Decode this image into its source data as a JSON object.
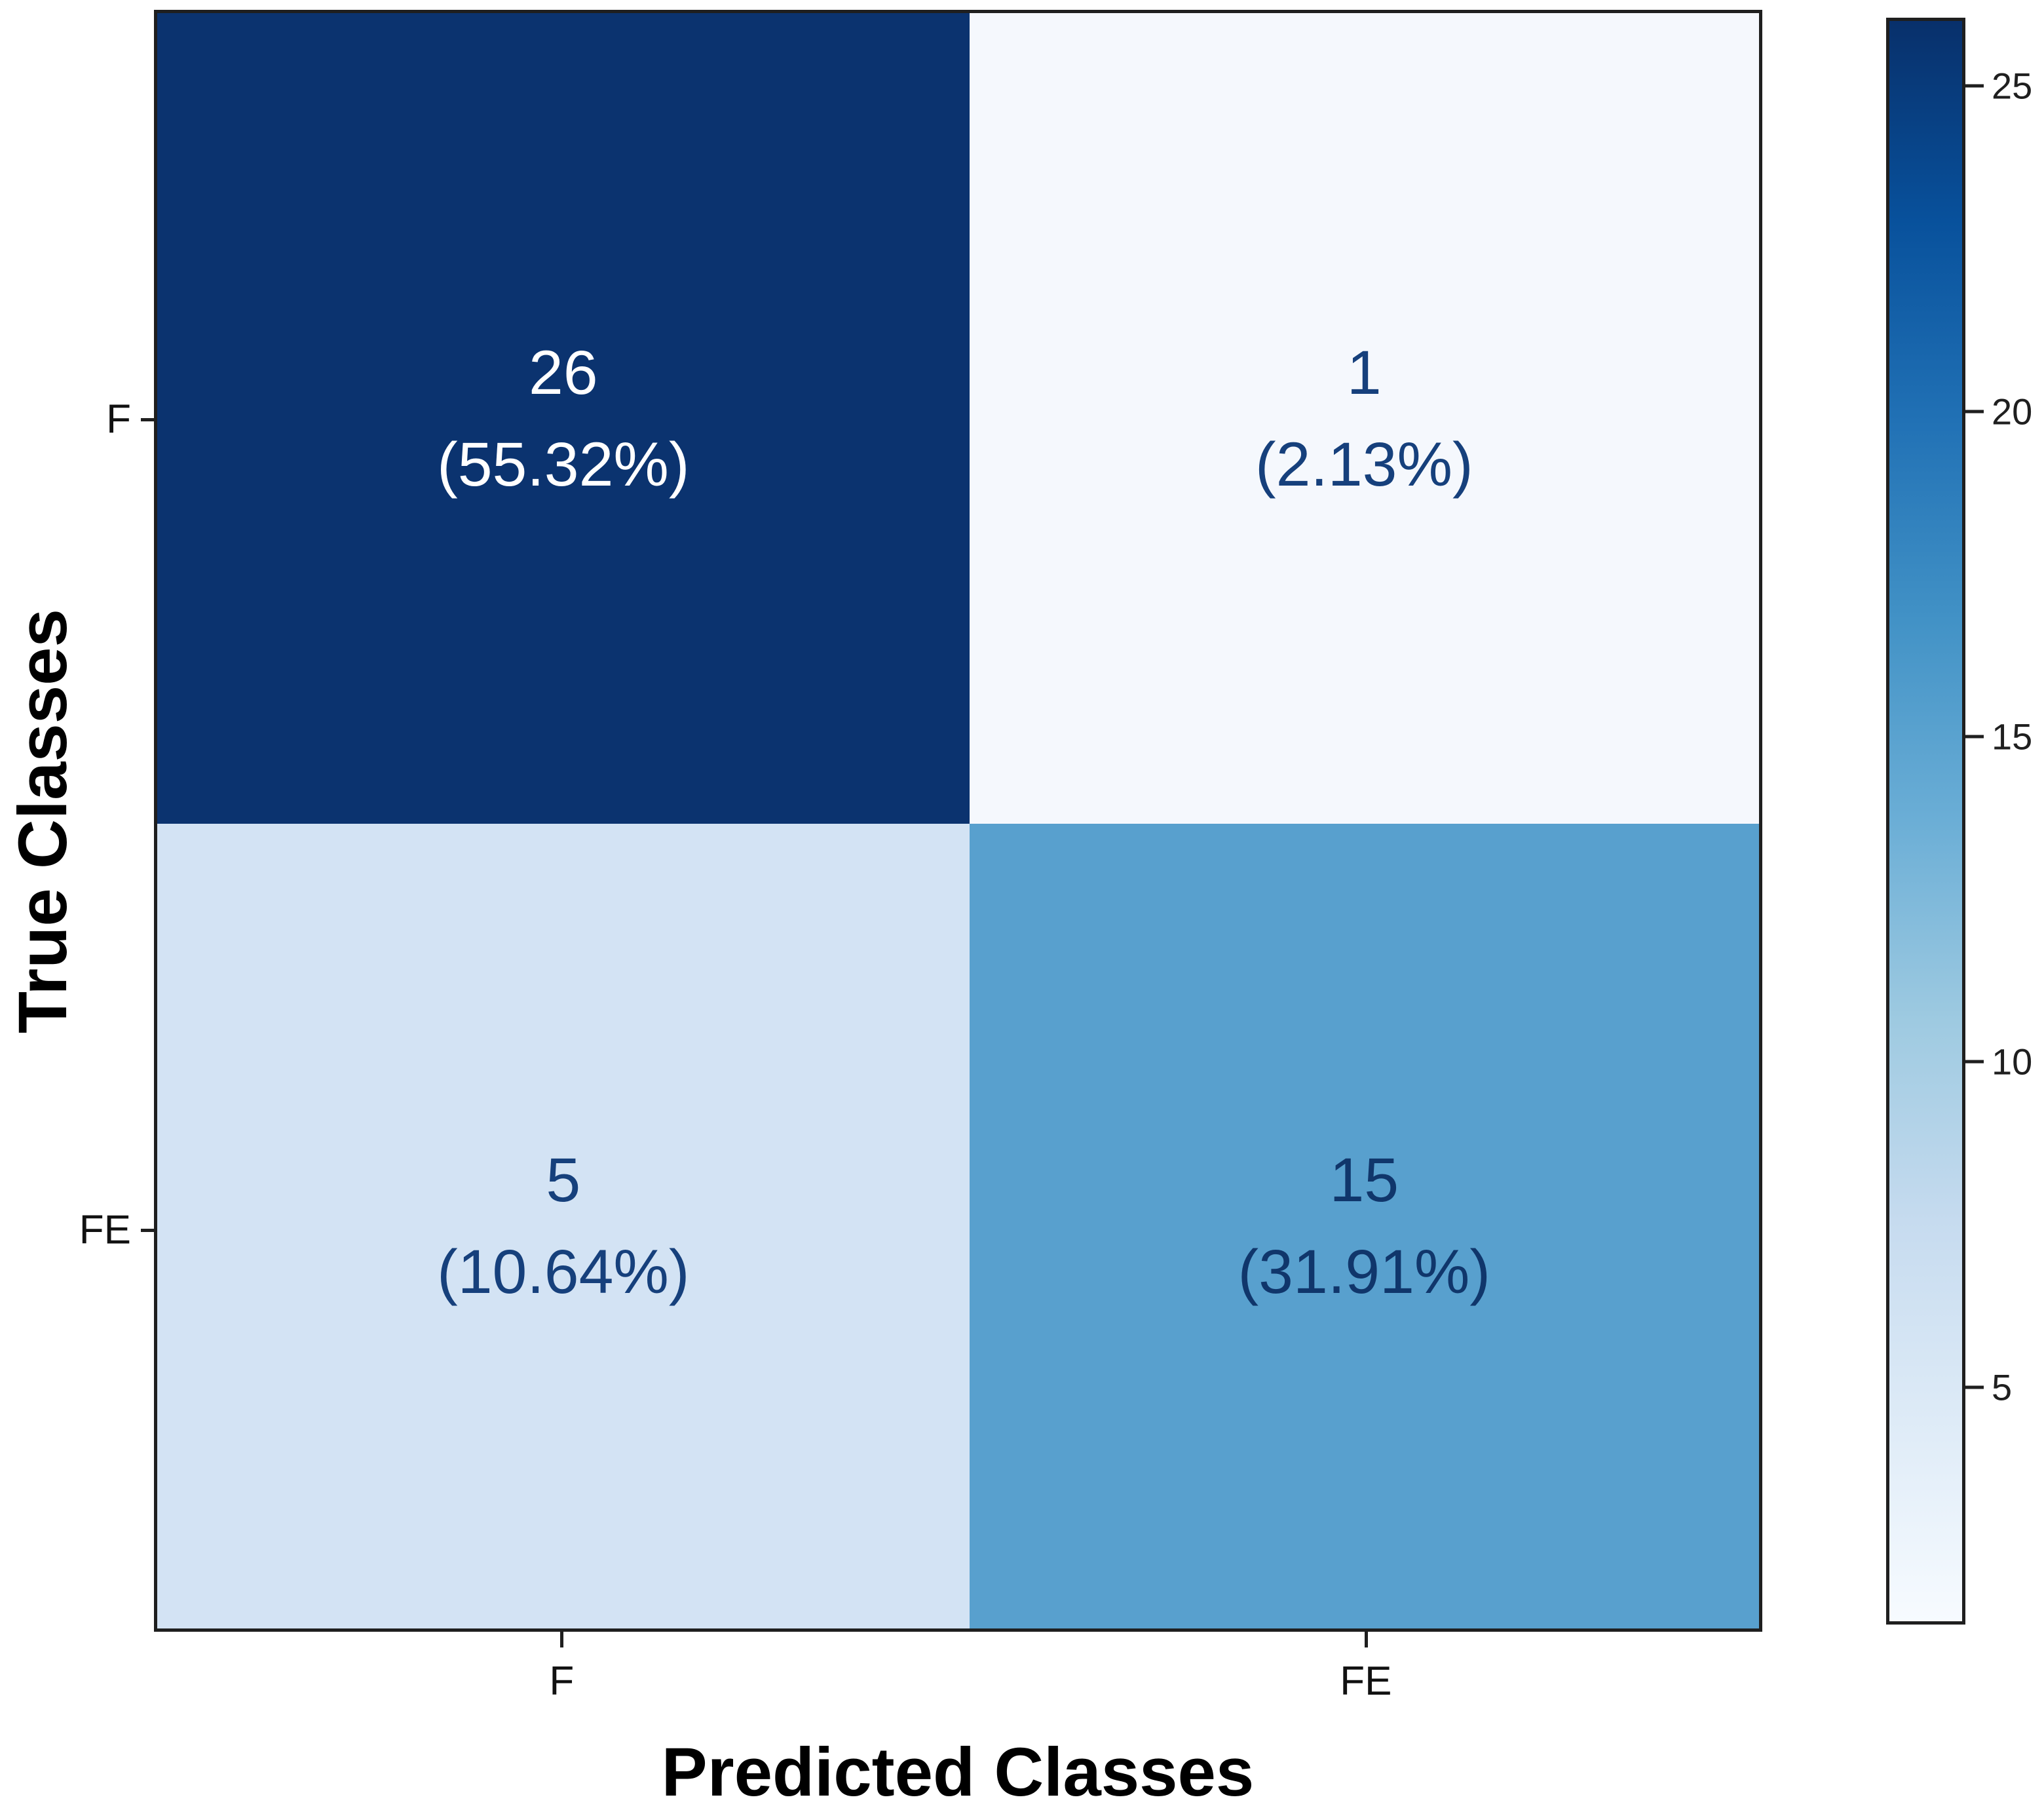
{
  "figure": {
    "background": "#ffffff",
    "frame_color": "#1f1f1f"
  },
  "chart_data": {
    "type": "heatmap",
    "subtype": "confusion-matrix",
    "title": "",
    "xlabel": "Predicted Classes",
    "ylabel": "True Classes",
    "x_categories": [
      "F",
      "FE"
    ],
    "y_categories": [
      "F",
      "FE"
    ],
    "counts": [
      [
        26,
        1
      ],
      [
        5,
        15
      ]
    ],
    "percent_labels": [
      [
        "(55.32%)",
        "(2.13%)"
      ],
      [
        "(10.64%)",
        "(31.91%)"
      ]
    ],
    "cells": [
      {
        "true_class": "F",
        "predicted_class": "F",
        "count": "26",
        "percent": "(55.32%)",
        "fill": "#0b336f",
        "text_color": "#ffffff"
      },
      {
        "true_class": "F",
        "predicted_class": "FE",
        "count": "1",
        "percent": "(2.13%)",
        "fill": "#f5f8fd",
        "text_color": "#16407c"
      },
      {
        "true_class": "FE",
        "predicted_class": "F",
        "count": "5",
        "percent": "(10.64%)",
        "fill": "#d3e3f4",
        "text_color": "#16407c"
      },
      {
        "true_class": "FE",
        "predicted_class": "FE",
        "count": "15",
        "percent": "(31.91%)",
        "fill": "#58a0ce",
        "text_color": "#10366b"
      }
    ],
    "grid": false,
    "legend": null,
    "colormap": "Blues",
    "colorbar": {
      "min": 1.35,
      "max": 26.05,
      "ticks": [
        25,
        20,
        15,
        10,
        5
      ],
      "gradient_stops_bottom_to_top": [
        "#f7fbff",
        "#deebf7",
        "#c6dbef",
        "#9ecae1",
        "#6baed6",
        "#4292c6",
        "#2171b5",
        "#08519c",
        "#08306b"
      ]
    }
  }
}
